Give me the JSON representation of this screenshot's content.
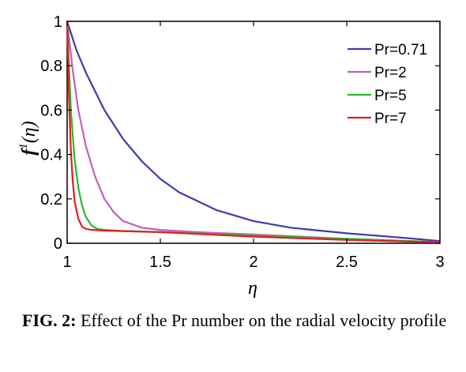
{
  "chart_data": {
    "type": "line",
    "xlabel": "η",
    "ylabel_main": "f",
    "ylabel_sup": "1",
    "ylabel_arg": "(η)",
    "xlim": [
      1,
      3
    ],
    "ylim": [
      0,
      1
    ],
    "xticks": [
      1,
      1.5,
      2,
      2.5,
      3
    ],
    "xtick_labels": [
      "1",
      "1.5",
      "2",
      "2.5",
      "3"
    ],
    "yticks": [
      0,
      0.2,
      0.4,
      0.6,
      0.8,
      1
    ],
    "ytick_labels": [
      "0",
      "0.2",
      "0.4",
      "0.6",
      "0.8",
      "1"
    ],
    "legend_position": "top-right",
    "grid": false,
    "series": [
      {
        "name": "Pr=0.71",
        "color": "#3b3bb0",
        "x": [
          1,
          1.05,
          1.1,
          1.2,
          1.3,
          1.4,
          1.5,
          1.6,
          1.8,
          2.0,
          2.2,
          2.5,
          2.8,
          3.0
        ],
        "y": [
          1.0,
          0.87,
          0.77,
          0.6,
          0.47,
          0.37,
          0.29,
          0.23,
          0.15,
          0.1,
          0.07,
          0.045,
          0.025,
          0.01
        ]
      },
      {
        "name": "Pr=2",
        "color": "#c060c0",
        "x": [
          1,
          1.03,
          1.06,
          1.1,
          1.15,
          1.2,
          1.25,
          1.3,
          1.4,
          1.5,
          1.7,
          2.0,
          2.5,
          3.0
        ],
        "y": [
          1.0,
          0.78,
          0.6,
          0.44,
          0.3,
          0.2,
          0.14,
          0.1,
          0.07,
          0.06,
          0.05,
          0.04,
          0.02,
          0.005
        ]
      },
      {
        "name": "Pr=5",
        "color": "#2eb82e",
        "x": [
          1,
          1.02,
          1.04,
          1.06,
          1.08,
          1.1,
          1.13,
          1.16,
          1.2,
          1.3,
          1.5,
          2.0,
          2.5,
          3.0
        ],
        "y": [
          1.0,
          0.6,
          0.38,
          0.25,
          0.17,
          0.12,
          0.08,
          0.065,
          0.06,
          0.055,
          0.05,
          0.035,
          0.02,
          0.005
        ]
      },
      {
        "name": "Pr=7",
        "color": "#e02020",
        "x": [
          1,
          1.01,
          1.02,
          1.03,
          1.04,
          1.06,
          1.08,
          1.1,
          1.13,
          1.2,
          1.5,
          2.0,
          2.5,
          3.0
        ],
        "y": [
          1.0,
          0.65,
          0.42,
          0.28,
          0.19,
          0.11,
          0.075,
          0.065,
          0.06,
          0.057,
          0.05,
          0.03,
          0.015,
          0.004
        ]
      }
    ]
  },
  "caption": {
    "label": "FIG. 2:",
    "text": " Effect of the Pr number on the radial velocity profile"
  }
}
